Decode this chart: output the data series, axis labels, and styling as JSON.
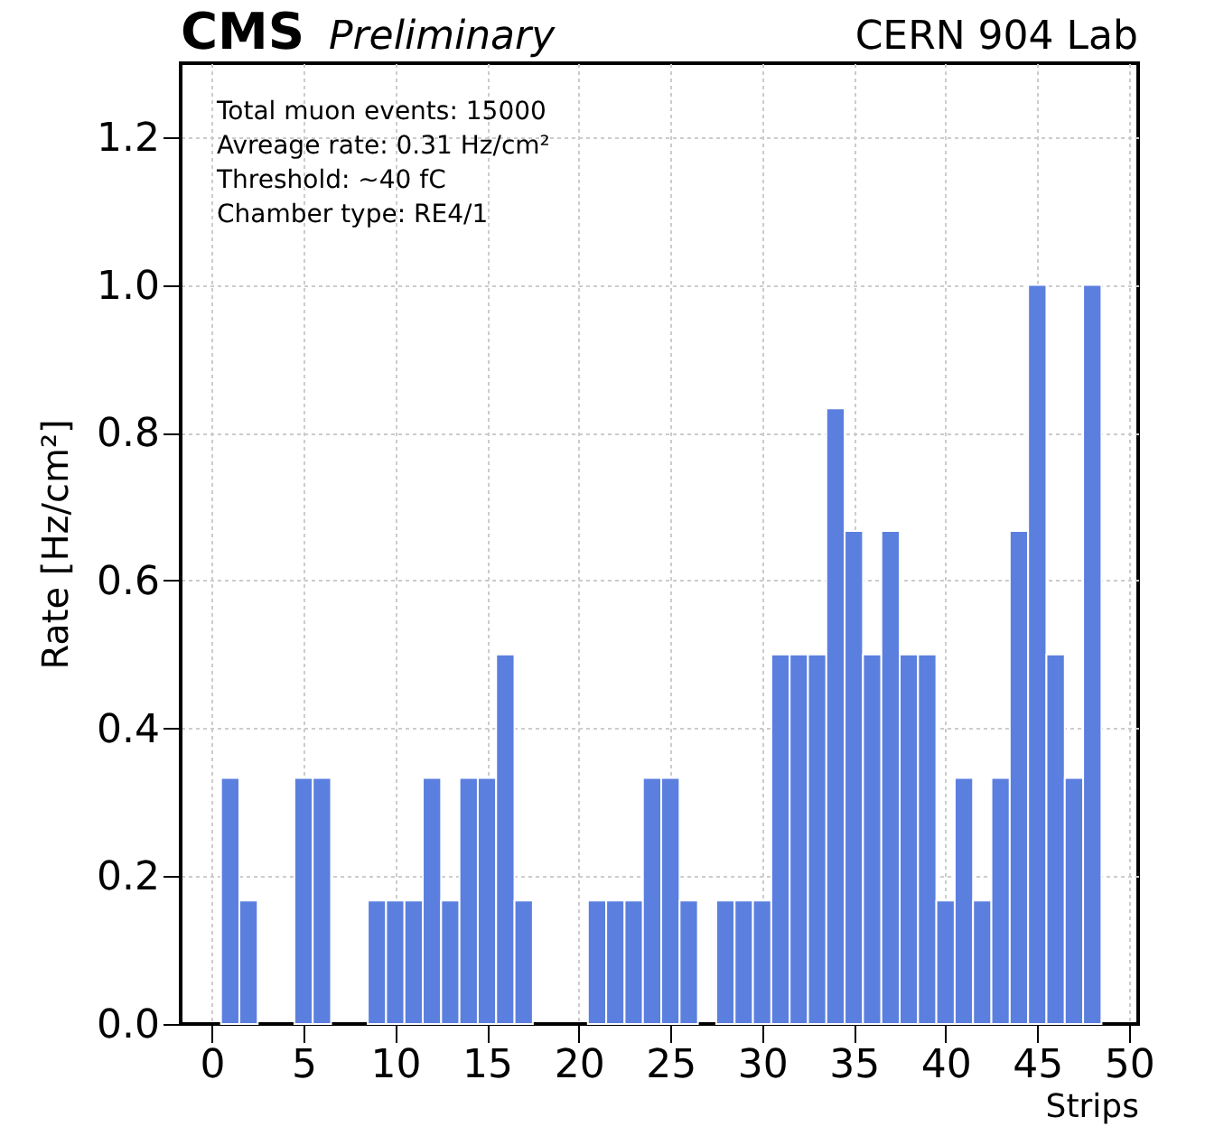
{
  "chart_data": {
    "type": "histogram",
    "title": "CMS",
    "subtitle": "Preliminary",
    "xlabel": "Strips",
    "ylabel": "Rate [Hz/cm²]",
    "annotations": [
      "CERN 904 Lab",
      "Total muon events: 15000",
      "Avreage rate: 0.31 Hz/cm²",
      "Threshold: ~40 fC",
      "Chamber type: RE4/1"
    ],
    "bins": [
      0.5,
      1.5,
      2.5,
      3.5,
      4.5,
      5.5,
      6.5,
      7.5,
      8.5,
      9.5,
      10.5,
      11.5,
      12.5,
      13.5,
      14.5,
      15.5,
      16.5,
      17.5,
      18.5,
      19.5,
      20.5,
      21.5,
      22.5,
      23.5,
      24.5,
      25.5,
      26.5,
      27.5,
      28.5,
      29.5,
      30.5,
      31.5,
      32.5,
      33.5,
      34.5,
      35.5,
      36.5,
      37.5,
      38.5,
      39.5,
      40.5,
      41.5,
      42.5,
      43.5,
      44.5,
      45.5,
      46.5,
      47.5,
      48.5
    ],
    "values": [
      0.333,
      0.167,
      0,
      0,
      0.333,
      0.333,
      0,
      0,
      0.167,
      0.167,
      0.167,
      0.333,
      0.167,
      0.333,
      0.333,
      0.5,
      0.167,
      0,
      0,
      0,
      0.167,
      0.167,
      0.167,
      0.333,
      0.333,
      0.167,
      0,
      0.167,
      0.167,
      0.167,
      0.5,
      0.5,
      0.5,
      0.833,
      0.667,
      0.5,
      0.667,
      0.5,
      0.5,
      0.167,
      0.333,
      0.167,
      0.333,
      0.667,
      1.0,
      0.5,
      0.333,
      1.0
    ],
    "color": "#5b7fdf",
    "xlim": [
      -1.7,
      50.5
    ],
    "xticks": [
      0,
      5,
      10,
      15,
      20,
      25,
      30,
      35,
      40,
      45,
      50
    ],
    "ylim": [
      0,
      1.3
    ],
    "yticks": [
      {
        "value": 0,
        "label": "0.0"
      },
      {
        "value": 0.2,
        "label": "0.2"
      },
      {
        "value": 0.4,
        "label": "0.4"
      },
      {
        "value": 0.6,
        "label": "0.6"
      },
      {
        "value": 0.8,
        "label": "0.8"
      },
      {
        "value": 1.0,
        "label": "1.0"
      },
      {
        "value": 1.2,
        "label": "1.2"
      }
    ],
    "grid": true
  }
}
